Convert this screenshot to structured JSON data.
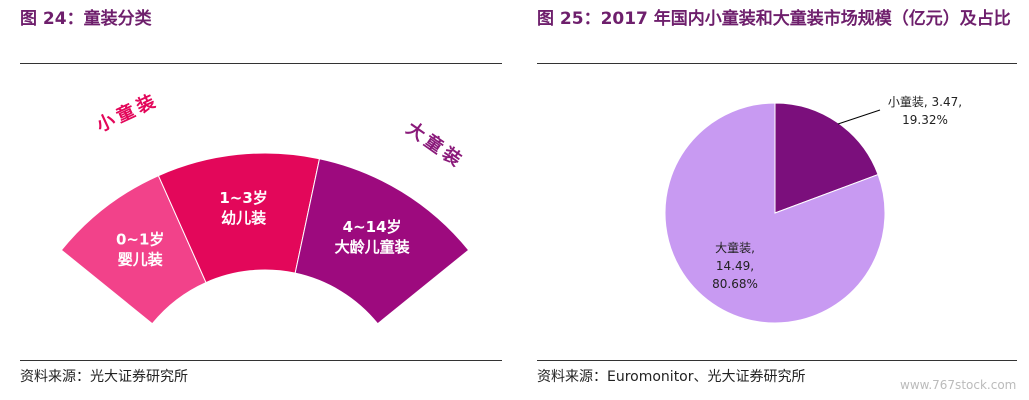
{
  "left": {
    "title": "图 24：童装分类",
    "groups": [
      "小童装",
      "大童装"
    ],
    "segments": [
      {
        "lines": [
          "0~1岁",
          "婴儿装"
        ],
        "color": "#f2428a"
      },
      {
        "lines": [
          "1~3岁",
          "幼儿装"
        ],
        "color": "#e3075a"
      },
      {
        "lines": [
          "4~14岁",
          "大龄儿童装"
        ],
        "color": "#9d0a7e"
      }
    ],
    "source": "资料来源：光大证券研究所"
  },
  "chart_data": {
    "type": "pie",
    "title": "图 25：2017 年国内小童装和大童装市场规模（亿元）及占比",
    "categories": [
      "小童装",
      "大童装"
    ],
    "values": [
      3.47,
      14.49
    ],
    "percents": [
      19.32,
      80.68
    ],
    "slice_labels": [
      [
        "小童装, 3.47,",
        "19.32%"
      ],
      [
        "大童装,",
        "14.49,",
        "80.68%"
      ]
    ],
    "colors": [
      "#7b0f7c",
      "#c89af2"
    ]
  },
  "right_source": "资料来源：Euromonitor、光大证券研究所",
  "watermark": "www.767stock.com"
}
